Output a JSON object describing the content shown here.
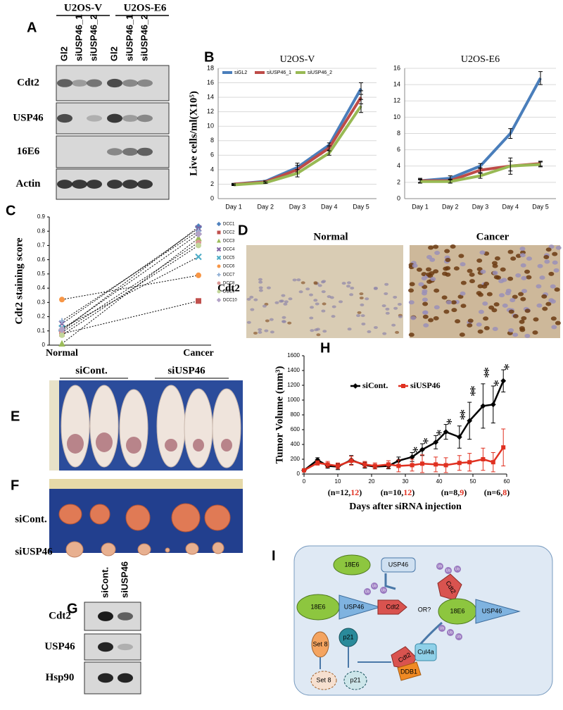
{
  "panels": {
    "A": {
      "label": "A",
      "groups": [
        "U2OS-V",
        "U2OS-E6"
      ],
      "lanes": [
        "Gl2",
        "siUSP46_1",
        "siUSP46_2",
        "Gl2",
        "siUSP46_1",
        "siUSP46_2"
      ],
      "rows": [
        "Cdt2",
        "USP46",
        "16E6",
        "Actin"
      ]
    },
    "B": {
      "label": "B"
    },
    "C": {
      "label": "C"
    },
    "D": {
      "label": "D",
      "titles": [
        "Normal",
        "Cancer"
      ],
      "row": "Cdt2"
    },
    "E": {
      "label": "E",
      "groups": [
        "siCont.",
        "siUSP46"
      ]
    },
    "F": {
      "label": "F",
      "rows": [
        "siCont.",
        "siUSP46"
      ]
    },
    "G": {
      "label": "G",
      "lanes": [
        "siCont.",
        "siUSP46"
      ],
      "rows": [
        "Cdt2",
        "USP46",
        "Hsp90"
      ]
    },
    "H": {
      "label": "H"
    },
    "I": {
      "label": "I",
      "nodes": {
        "e6_top": "18E6",
        "usp_top": "USP46",
        "e6_left": "18E6",
        "usp_left": "USP46",
        "cdt_left": "Cdt2",
        "or": "OR?",
        "cdt_right": "Cdt2",
        "e6_right": "18E6",
        "usp_right": "USP46",
        "cdt_bottom": "Cdt2",
        "cul4a": "Cul4a",
        "ddb1": "DDB1",
        "set8": "Set 8",
        "p21": "p21",
        "set8_deg": "Set 8",
        "p21_deg": "p21",
        "ub": "Ub"
      }
    }
  },
  "chart_data": [
    {
      "type": "line",
      "title": "U2OS-V",
      "y_label": "Live cells/ml(X10⁵)",
      "categories": [
        "Day 1",
        "Day 2",
        "Day 3",
        "Day 4",
        "Day 5"
      ],
      "ylim": [
        0,
        18
      ],
      "yticks": [
        0,
        2,
        4,
        6,
        8,
        10,
        12,
        14,
        16,
        18
      ],
      "grid": true,
      "legend": "top-left",
      "series": [
        {
          "name": "siGL2",
          "color": "#4a7ebb",
          "values": [
            2,
            2.4,
            4.3,
            7.4,
            15.2
          ],
          "errors": [
            0.1,
            0.1,
            0.6,
            0.3,
            0.8
          ]
        },
        {
          "name": "siUSP46_1",
          "color": "#be4b48",
          "values": [
            2,
            2.3,
            4,
            7,
            14
          ],
          "errors": [
            0.1,
            0.1,
            0.6,
            0.3,
            0.9
          ]
        },
        {
          "name": "siUSP46_2",
          "color": "#98b954",
          "values": [
            1.9,
            2.2,
            3.5,
            6.3,
            12.8
          ],
          "errors": [
            0.1,
            0.1,
            0.5,
            0.3,
            0.9
          ]
        }
      ]
    },
    {
      "type": "line",
      "title": "U2OS-E6",
      "categories": [
        "Day 1",
        "Day 2",
        "Day 3",
        "Day 4",
        "Day 5"
      ],
      "ylim": [
        0,
        16
      ],
      "yticks": [
        0,
        2,
        4,
        6,
        8,
        10,
        12,
        14,
        16
      ],
      "grid": true,
      "series": [
        {
          "color": "#4a7ebb",
          "values": [
            2.2,
            2.5,
            4,
            8,
            14.8
          ],
          "errors": [
            0.3,
            0.3,
            0.3,
            0.6,
            0.8
          ]
        },
        {
          "color": "#be4b48",
          "values": [
            2.2,
            2.2,
            3.5,
            4,
            4.3
          ],
          "errors": [
            0.2,
            0.2,
            0.3,
            0.6,
            0.3
          ]
        },
        {
          "color": "#98b954",
          "values": [
            2.1,
            2.1,
            2.8,
            4,
            4.2
          ],
          "errors": [
            0.2,
            0.2,
            0.3,
            1,
            0.3
          ]
        }
      ]
    },
    {
      "type": "slope",
      "y_label": "Cdt2 staining score",
      "categories": [
        "Normal",
        "Cancer"
      ],
      "ylim": [
        0,
        0.9
      ],
      "yticks": [
        0,
        0.1,
        0.2,
        0.3,
        0.4,
        0.5,
        0.6,
        0.7,
        0.8,
        0.9
      ],
      "grid": false,
      "legend": "right",
      "line_color": "#000",
      "series": [
        {
          "name": "DCC1",
          "color": "#4f81bd",
          "marker": "diamond",
          "values": [
            0.1,
            0.83
          ]
        },
        {
          "name": "DCC2",
          "color": "#c0504d",
          "marker": "square",
          "values": [
            0.08,
            0.31
          ]
        },
        {
          "name": "DCC3",
          "color": "#9bbb59",
          "marker": "triangle",
          "values": [
            0.01,
            0.75
          ]
        },
        {
          "name": "DCC4",
          "color": "#8064a2",
          "marker": "x",
          "values": [
            0.15,
            0.82
          ]
        },
        {
          "name": "DCC5",
          "color": "#4bacc6",
          "marker": "x",
          "values": [
            0.12,
            0.62
          ]
        },
        {
          "name": "DCC6",
          "color": "#f79646",
          "marker": "circle",
          "values": [
            0.32,
            0.49
          ]
        },
        {
          "name": "DCC7",
          "color": "#95b3d7",
          "marker": "plus",
          "values": [
            0.17,
            0.8
          ]
        },
        {
          "name": "DCC8",
          "color": "#d99694",
          "marker": "circle",
          "values": [
            0.09,
            0.72
          ]
        },
        {
          "name": "DCC9",
          "color": "#c3d69b",
          "marker": "circle",
          "values": [
            0.07,
            0.7
          ]
        },
        {
          "name": "DCC10",
          "color": "#b2a2c7",
          "marker": "diamond",
          "values": [
            0.11,
            0.78
          ]
        }
      ]
    },
    {
      "type": "line",
      "y_label": "Tumor Volume (mm³)",
      "x_label": "Days after siRNA injection",
      "x": [
        0,
        4,
        7,
        10,
        14,
        18,
        21,
        25,
        28,
        32,
        35,
        39,
        42,
        46,
        49,
        53,
        56,
        59
      ],
      "xlim": [
        0,
        60
      ],
      "xticks": [
        0,
        10,
        20,
        30,
        40,
        50,
        60
      ],
      "ylim": [
        0,
        1600
      ],
      "yticks": [
        0,
        200,
        400,
        600,
        800,
        1000,
        1200,
        1400,
        1600
      ],
      "grid": false,
      "legend": "top-left",
      "series": [
        {
          "name": "siCont.",
          "color": "#000000",
          "marker": "diamond",
          "values": [
            50,
            190,
            110,
            100,
            190,
            120,
            100,
            110,
            180,
            230,
            330,
            430,
            570,
            500,
            720,
            920,
            940,
            1260
          ],
          "errors": [
            20,
            30,
            30,
            40,
            60,
            40,
            30,
            40,
            50,
            60,
            80,
            90,
            100,
            150,
            250,
            300,
            250,
            150
          ]
        },
        {
          "name": "siUSP46",
          "color": "#e03020",
          "marker": "square",
          "values": [
            50,
            150,
            130,
            110,
            180,
            130,
            110,
            130,
            110,
            120,
            140,
            130,
            120,
            150,
            160,
            200,
            160,
            360
          ],
          "errors": [
            20,
            30,
            40,
            40,
            60,
            40,
            40,
            50,
            80,
            80,
            120,
            100,
            100,
            100,
            120,
            150,
            130,
            250
          ]
        }
      ],
      "annotations": [
        {
          "x": 32,
          "text": "*"
        },
        {
          "x": 35,
          "text": "*"
        },
        {
          "x": 39,
          "text": "*"
        },
        {
          "x": 42,
          "text": "*"
        },
        {
          "x": 46,
          "text": "**"
        },
        {
          "x": 49,
          "text": "**"
        },
        {
          "x": 53,
          "text": "**"
        },
        {
          "x": 56,
          "text": "*"
        },
        {
          "x": 59,
          "text": "*"
        }
      ],
      "n_labels": [
        [
          "(n=12,",
          "12",
          ")"
        ],
        [
          "(n=10,",
          "12",
          ")"
        ],
        [
          "(n=8,",
          "9",
          ")"
        ],
        [
          "(n=6,",
          "8",
          ")"
        ]
      ]
    }
  ]
}
